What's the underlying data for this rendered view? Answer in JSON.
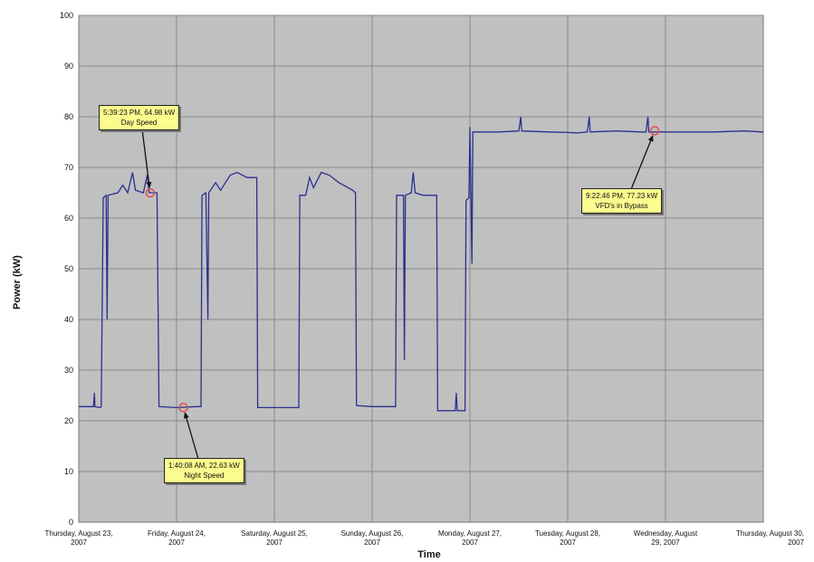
{
  "chart_data": {
    "type": "line",
    "title": "",
    "xlabel": "Time",
    "ylabel": "Power (kW)",
    "ylim": [
      0,
      100
    ],
    "yticks": [
      0,
      10,
      20,
      30,
      40,
      50,
      60,
      70,
      80,
      90,
      100
    ],
    "xlim_days": [
      0,
      7
    ],
    "xtick_labels": [
      [
        "Thursday, August 23,",
        "2007"
      ],
      [
        "Friday, August 24,",
        "2007"
      ],
      [
        "Saturday, August 25,",
        "2007"
      ],
      [
        "Sunday, August 26,",
        "2007"
      ],
      [
        "Monday, August 27,",
        "2007"
      ],
      [
        "Tuesday, August 28,",
        "2007"
      ],
      [
        "Wednesday, August",
        "29, 2007"
      ],
      [
        "Thursday, August 30,",
        "2007"
      ]
    ],
    "grid": true,
    "colors": {
      "line": "#2b2f8f",
      "plot_bg": "#c0c0c0",
      "grid": "#8a8a8a",
      "marker": "#e05050",
      "note_bg": "#fbfb8e"
    },
    "series": [
      {
        "values_xy": [
          [
            0.0,
            22.8
          ],
          [
            0.15,
            22.8
          ],
          [
            0.16,
            25.5
          ],
          [
            0.165,
            22.8
          ],
          [
            0.22,
            22.6
          ],
          [
            0.23,
            22.8
          ],
          [
            0.25,
            64.0
          ],
          [
            0.28,
            64.5
          ],
          [
            0.29,
            40.0
          ],
          [
            0.3,
            64.5
          ],
          [
            0.4,
            65.0
          ],
          [
            0.45,
            66.5
          ],
          [
            0.5,
            65.0
          ],
          [
            0.55,
            69.0
          ],
          [
            0.58,
            65.5
          ],
          [
            0.66,
            65.0
          ],
          [
            0.7,
            68.5
          ],
          [
            0.72,
            65.0
          ],
          [
            0.8,
            65.0
          ],
          [
            0.82,
            22.8
          ],
          [
            1.0,
            22.6
          ],
          [
            1.2,
            22.8
          ],
          [
            1.25,
            22.8
          ],
          [
            1.26,
            64.5
          ],
          [
            1.3,
            65.0
          ],
          [
            1.32,
            40.0
          ],
          [
            1.33,
            65.0
          ],
          [
            1.4,
            67.0
          ],
          [
            1.45,
            65.5
          ],
          [
            1.55,
            68.5
          ],
          [
            1.62,
            69.0
          ],
          [
            1.72,
            68.0
          ],
          [
            1.82,
            68.0
          ],
          [
            1.83,
            22.6
          ],
          [
            2.0,
            22.6
          ],
          [
            2.2,
            22.6
          ],
          [
            2.25,
            22.6
          ],
          [
            2.26,
            64.5
          ],
          [
            2.32,
            64.5
          ],
          [
            2.36,
            68.0
          ],
          [
            2.4,
            66.0
          ],
          [
            2.48,
            69.0
          ],
          [
            2.56,
            68.5
          ],
          [
            2.66,
            67.0
          ],
          [
            2.8,
            65.5
          ],
          [
            2.83,
            65.0
          ],
          [
            2.84,
            23.0
          ],
          [
            3.0,
            22.8
          ],
          [
            3.2,
            22.8
          ],
          [
            3.24,
            22.8
          ],
          [
            3.25,
            64.5
          ],
          [
            3.32,
            64.5
          ],
          [
            3.33,
            32.0
          ],
          [
            3.34,
            64.5
          ],
          [
            3.4,
            65.0
          ],
          [
            3.42,
            69.0
          ],
          [
            3.44,
            65.0
          ],
          [
            3.52,
            64.5
          ],
          [
            3.6,
            64.5
          ],
          [
            3.66,
            64.5
          ],
          [
            3.67,
            22.0
          ],
          [
            3.85,
            22.0
          ],
          [
            3.86,
            25.5
          ],
          [
            3.87,
            22.0
          ],
          [
            3.95,
            22.0
          ],
          [
            3.96,
            63.5
          ],
          [
            3.99,
            64.0
          ],
          [
            4.0,
            78.0
          ],
          [
            4.02,
            51.0
          ],
          [
            4.03,
            77.0
          ],
          [
            4.3,
            77.0
          ],
          [
            4.5,
            77.2
          ],
          [
            4.52,
            80.0
          ],
          [
            4.53,
            77.2
          ],
          [
            4.8,
            77.0
          ],
          [
            5.0,
            76.9
          ],
          [
            5.1,
            76.8
          ],
          [
            5.2,
            77.0
          ],
          [
            5.22,
            80.0
          ],
          [
            5.23,
            77.0
          ],
          [
            5.5,
            77.2
          ],
          [
            5.75,
            77.0
          ],
          [
            5.8,
            77.0
          ],
          [
            5.82,
            80.0
          ],
          [
            5.83,
            77.0
          ],
          [
            6.1,
            77.0
          ],
          [
            6.5,
            77.0
          ],
          [
            6.8,
            77.2
          ],
          [
            7.0,
            77.0
          ]
        ]
      }
    ],
    "annotations": [
      {
        "lines": [
          "5:39:23 PM, 64.98 kW",
          "Day Speed"
        ],
        "x": 0.73,
        "y": 64.98
      },
      {
        "lines": [
          "1:40:08 AM, 22.63 kW",
          "Night Speed"
        ],
        "x": 1.07,
        "y": 22.63
      },
      {
        "lines": [
          "9:22:46 PM, 77.23 kW",
          "VFD's in Bypass"
        ],
        "x": 5.89,
        "y": 77.23
      }
    ]
  }
}
